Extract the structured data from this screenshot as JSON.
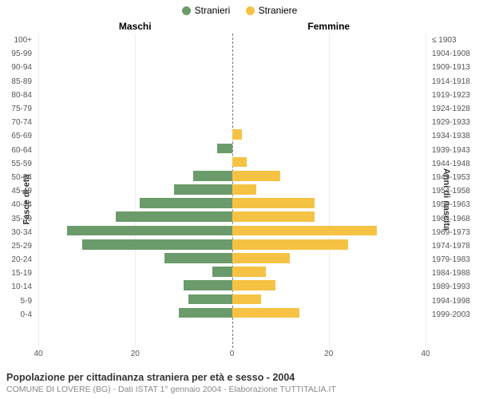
{
  "legend": {
    "male_label": "Stranieri",
    "female_label": "Straniere"
  },
  "headers": {
    "left": "Maschi",
    "right": "Femmine"
  },
  "axis_titles": {
    "left": "Fasce di età",
    "right": "Anni di nascita"
  },
  "chart": {
    "type": "population-pyramid",
    "max_scale": 40,
    "male_color": "#6b9b6b",
    "female_color": "#f6c244",
    "grid_color": "#eeeeee",
    "centerline_color": "#777777",
    "background_color": "#ffffff",
    "x_ticks_left": [
      40,
      20,
      0
    ],
    "x_ticks_right": [
      0,
      20,
      40
    ],
    "rows": [
      {
        "age": "100+",
        "birth": "≤ 1903",
        "m": 0,
        "f": 0
      },
      {
        "age": "95-99",
        "birth": "1904-1908",
        "m": 0,
        "f": 0
      },
      {
        "age": "90-94",
        "birth": "1909-1913",
        "m": 0,
        "f": 0
      },
      {
        "age": "85-89",
        "birth": "1914-1918",
        "m": 0,
        "f": 0
      },
      {
        "age": "80-84",
        "birth": "1919-1923",
        "m": 0,
        "f": 0
      },
      {
        "age": "75-79",
        "birth": "1924-1928",
        "m": 0,
        "f": 0
      },
      {
        "age": "70-74",
        "birth": "1929-1933",
        "m": 0,
        "f": 0
      },
      {
        "age": "65-69",
        "birth": "1934-1938",
        "m": 0,
        "f": 2
      },
      {
        "age": "60-64",
        "birth": "1939-1943",
        "m": 3,
        "f": 0
      },
      {
        "age": "55-59",
        "birth": "1944-1948",
        "m": 0,
        "f": 3
      },
      {
        "age": "50-54",
        "birth": "1949-1953",
        "m": 8,
        "f": 10
      },
      {
        "age": "45-49",
        "birth": "1954-1958",
        "m": 12,
        "f": 5
      },
      {
        "age": "40-44",
        "birth": "1959-1963",
        "m": 19,
        "f": 17
      },
      {
        "age": "35-39",
        "birth": "1964-1968",
        "m": 24,
        "f": 17
      },
      {
        "age": "30-34",
        "birth": "1969-1973",
        "m": 34,
        "f": 30
      },
      {
        "age": "25-29",
        "birth": "1974-1978",
        "m": 31,
        "f": 24
      },
      {
        "age": "20-24",
        "birth": "1979-1983",
        "m": 14,
        "f": 12
      },
      {
        "age": "15-19",
        "birth": "1984-1988",
        "m": 4,
        "f": 7
      },
      {
        "age": "10-14",
        "birth": "1989-1993",
        "m": 10,
        "f": 9
      },
      {
        "age": "5-9",
        "birth": "1994-1998",
        "m": 9,
        "f": 6
      },
      {
        "age": "0-4",
        "birth": "1999-2003",
        "m": 11,
        "f": 14
      }
    ]
  },
  "footer": {
    "title": "Popolazione per cittadinanza straniera per età e sesso - 2004",
    "subtitle": "COMUNE DI LOVERE (BG) - Dati ISTAT 1° gennaio 2004 - Elaborazione TUTTITALIA.IT"
  }
}
